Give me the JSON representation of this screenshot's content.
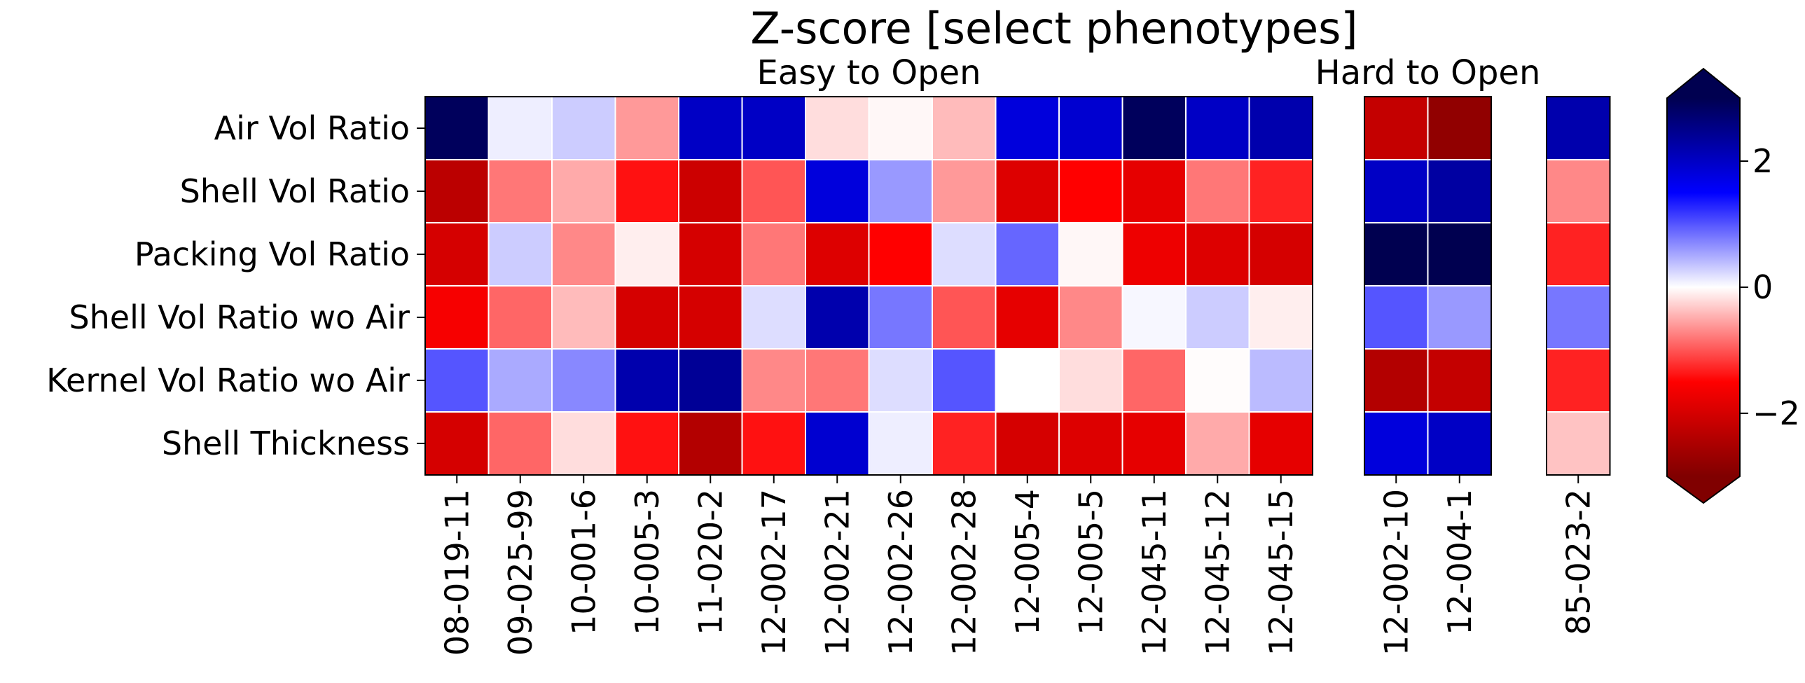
{
  "chart_data": {
    "type": "heatmap",
    "title": "Z-score [select phenotypes]",
    "rows": [
      "Air Vol Ratio",
      "Shell Vol Ratio",
      "Packing Vol Ratio",
      "Shell Vol Ratio wo Air",
      "Kernel Vol Ratio wo Air",
      "Shell Thickness"
    ],
    "groups": [
      {
        "label": "Easy to Open",
        "columns": [
          "08-019-11",
          "09-025-99",
          "10-001-6",
          "10-005-3",
          "11-020-2",
          "12-002-17",
          "12-002-21",
          "12-002-26",
          "12-002-28",
          "12-005-4",
          "12-005-5",
          "12-045-11",
          "12-045-12",
          "12-045-15"
        ],
        "values": [
          [
            2.9,
            0.1,
            0.3,
            -0.6,
            2.0,
            2.0,
            -0.2,
            -0.05,
            -0.4,
            1.8,
            1.9,
            2.9,
            2.0,
            2.2
          ],
          [
            -2.3,
            -0.8,
            -0.5,
            -1.4,
            -2.1,
            -1.0,
            1.8,
            0.6,
            -0.6,
            -1.9,
            -1.5,
            -1.8,
            -0.8,
            -1.3
          ],
          [
            -2.0,
            0.3,
            -0.7,
            -0.1,
            -2.0,
            -0.8,
            -1.9,
            -1.5,
            0.2,
            0.9,
            -0.05,
            -1.7,
            -1.9,
            -2.0
          ],
          [
            -1.6,
            -0.9,
            -0.4,
            -2.0,
            -2.0,
            0.2,
            2.2,
            0.8,
            -1.0,
            -1.8,
            -0.7,
            0.05,
            0.3,
            -0.1
          ],
          [
            1.0,
            0.5,
            0.7,
            2.2,
            2.4,
            -0.7,
            -0.8,
            0.2,
            1.0,
            0.0,
            -0.2,
            -0.9,
            -0.02,
            0.4
          ],
          [
            -2.0,
            -0.9,
            -0.2,
            -1.4,
            -2.4,
            -1.4,
            1.9,
            0.1,
            -1.3,
            -2.0,
            -1.9,
            -1.8,
            -0.5,
            -1.8
          ]
        ]
      },
      {
        "label": "Hard to Open",
        "columns": [
          "12-002-10",
          "12-004-1"
        ],
        "values": [
          [
            -2.2,
            -2.8
          ],
          [
            2.0,
            2.3
          ],
          [
            3.0,
            3.0
          ],
          [
            1.0,
            0.6
          ],
          [
            -2.4,
            -2.2
          ],
          [
            1.8,
            2.0
          ]
        ]
      },
      {
        "label": "",
        "columns": [
          "85-023-2"
        ],
        "values": [
          [
            2.2
          ],
          [
            -0.7
          ],
          [
            -1.3
          ],
          [
            0.8
          ],
          [
            -1.3
          ],
          [
            -0.35
          ]
        ]
      }
    ],
    "colormap": {
      "name": "seismic",
      "vmin": -3,
      "vmax": 3,
      "ticks": [
        -2,
        0,
        2
      ],
      "tick_labels": [
        "−2",
        "0",
        "2"
      ],
      "extend": "both"
    },
    "grid": true
  }
}
